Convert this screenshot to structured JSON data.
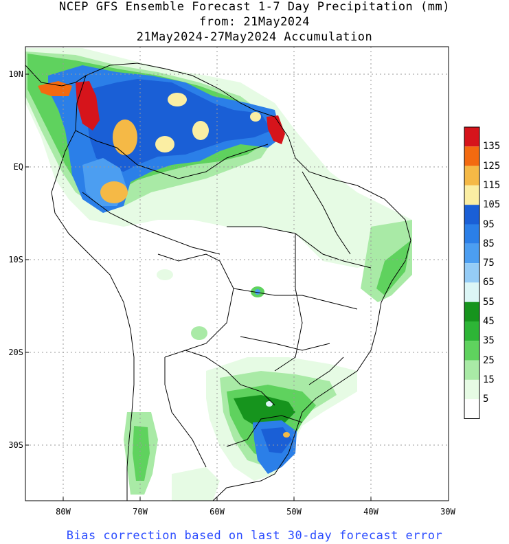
{
  "header": {
    "line1": "NCEP GFS Ensemble Forecast 1-7 Day Precipitation (mm)",
    "line2": "from: 21May2024",
    "line3": "21May2024-27May2024 Accumulation"
  },
  "axes": {
    "y_ticks": [
      "10N",
      "EQ",
      "10S",
      "20S",
      "30S"
    ],
    "x_ticks": [
      "80W",
      "70W",
      "60W",
      "50W",
      "40W",
      "30W"
    ]
  },
  "colorbar": {
    "labels": [
      "135",
      "125",
      "115",
      "105",
      "95",
      "85",
      "75",
      "65",
      "55",
      "45",
      "35",
      "25",
      "15",
      "5"
    ],
    "colors": [
      "#d6141b",
      "#f36a10",
      "#f5b946",
      "#fbeea3",
      "#1a5fd6",
      "#2b7fe8",
      "#4c9ef1",
      "#95ccf6",
      "#dcf6f6",
      "#16941d",
      "#2db536",
      "#5fd25e",
      "#a9eaa6",
      "#e6fbe4",
      "#ffffff"
    ]
  },
  "footer": {
    "text": "Bias correction based on last 30-day forecast error"
  }
}
